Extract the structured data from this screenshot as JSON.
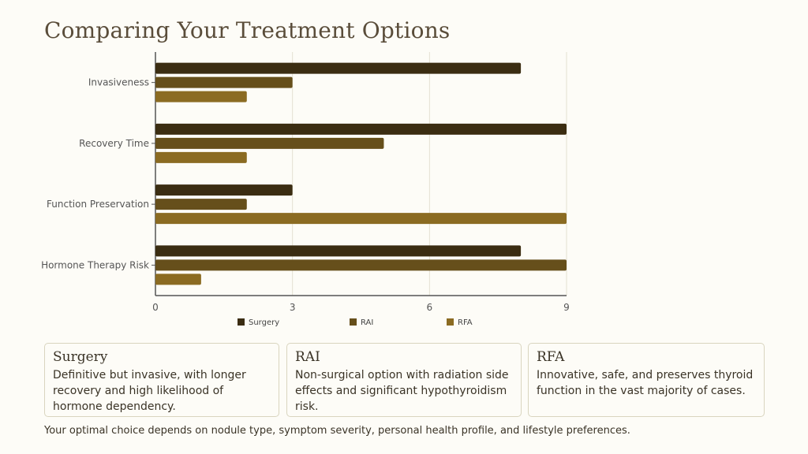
{
  "title": "Comparing Your Treatment Options",
  "colors": {
    "Surgery": "#3b2d12",
    "RAI": "#664f1b",
    "RFA": "#8b6b22",
    "grid": "#e4e0d2",
    "axis": "#555555"
  },
  "chart_data": {
    "type": "bar",
    "orientation": "horizontal",
    "categories": [
      "Invasiveness",
      "Recovery Time",
      "Function Preservation",
      "Hormone Therapy Risk"
    ],
    "series": [
      {
        "name": "Surgery",
        "values": [
          8,
          9,
          3,
          8
        ]
      },
      {
        "name": "RAI",
        "values": [
          3,
          5,
          2,
          9
        ]
      },
      {
        "name": "RFA",
        "values": [
          2,
          2,
          9,
          1
        ]
      }
    ],
    "xlim": [
      0,
      9
    ],
    "xticks": [
      "0",
      "3",
      "6",
      "9"
    ],
    "grid": true,
    "legend": "bottom"
  },
  "cards": [
    {
      "title": "Surgery",
      "text": "Definitive but invasive, with longer recovery and high likelihood of hormone dependency."
    },
    {
      "title": "RAI",
      "text": "Non-surgical option with radiation side effects and significant hypothyroidism risk."
    },
    {
      "title": "RFA",
      "text": "Innovative, safe, and preserves thyroid function in the vast majority of cases."
    }
  ],
  "footer": "Your optimal choice depends on nodule type, symptom severity, personal health profile, and lifestyle preferences."
}
